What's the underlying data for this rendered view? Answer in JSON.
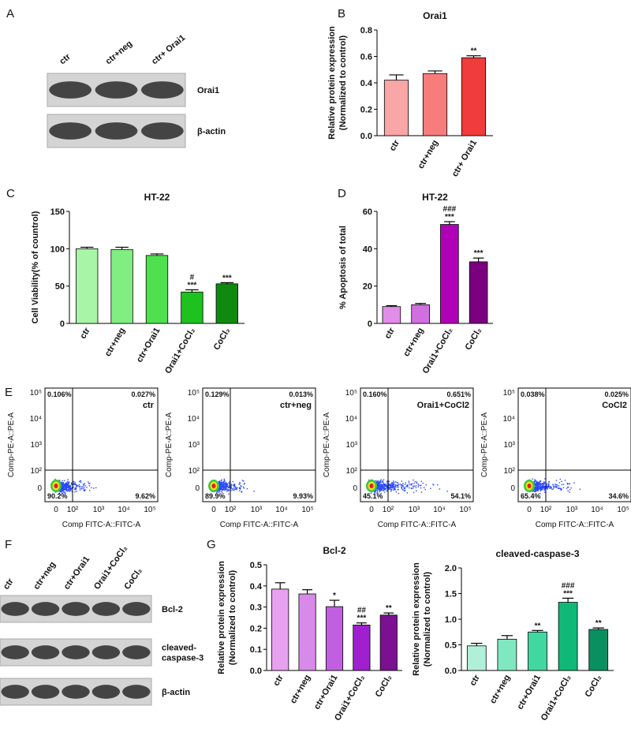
{
  "panels": [
    "A",
    "B",
    "C",
    "D",
    "E",
    "F",
    "G"
  ],
  "blot_a": {
    "lanes": [
      "ctr",
      "ctr+neg",
      "ctr+ Orai1"
    ],
    "rows": [
      [
        "Orai1"
      ],
      [
        "β-actin"
      ]
    ]
  },
  "flow": {
    "ylabel": "Comp-PE-A::PE-A",
    "xlabel": "Comp FITC-A::FITC-A",
    "yticks": [
      "10⁵",
      "10⁴",
      "10³",
      "10²",
      "0"
    ],
    "xticks": [
      "0",
      "10²",
      "10³",
      "10⁴",
      "10⁵"
    ],
    "plots": [
      {
        "tag": "ctr",
        "quadrants": [
          "0.106%",
          "0.027%",
          "90.2%",
          "9.62%"
        ]
      },
      {
        "tag": "ctr+neg",
        "quadrants": [
          "0.129%",
          "0.013%",
          "89.9%",
          "9.93%"
        ]
      },
      {
        "tag": "Orai1+CoCl2",
        "quadrants": [
          "0.160%",
          "0.651%",
          "45.1%",
          "54.1%"
        ]
      },
      {
        "tag": "CoCl2",
        "quadrants": [
          "0.038%",
          "0.025%",
          "65.4%",
          "34.6%"
        ]
      }
    ]
  },
  "blot_f": {
    "lanes": [
      "ctr",
      "ctr+neg",
      "ctr+Orai1",
      "Orai1+CoCl₂",
      "CoCl₂"
    ],
    "rows": [
      [
        "Bcl-2"
      ],
      [
        "cleaved-",
        "caspase-3"
      ],
      [
        "β-actin"
      ]
    ]
  },
  "chart_data": [
    {
      "type": "bar",
      "title": "Orai1",
      "ylabel": [
        "Relative protein expression",
        "(Normalized to control)"
      ],
      "categories": [
        "ctr",
        "ctr+neg",
        "ctr+ Orai1"
      ],
      "values": [
        0.42,
        0.47,
        0.59
      ],
      "errors": [
        0.04,
        0.02,
        0.015
      ],
      "colors": [
        "#f9a6a6",
        "#f77c7c",
        "#f03c3c"
      ],
      "annotations": [
        null,
        null,
        [
          "**"
        ]
      ],
      "ylim": [
        0,
        0.8
      ],
      "yticks": [
        {
          "value": 0,
          "label": "0.0"
        },
        0.2,
        0.4,
        0.6,
        0.8
      ]
    },
    {
      "type": "bar",
      "title": "HT-22",
      "ylabel": [
        "Cell Viability(% of countrol)"
      ],
      "categories": [
        "ctr",
        "ctr+neg",
        "ctr+Orai1",
        "Orai1+CoCl₂",
        "CoCl₂"
      ],
      "values": [
        100,
        99,
        91,
        42,
        53
      ],
      "errors": [
        2,
        3,
        2,
        3,
        1.5
      ],
      "colors": [
        "#a8f5a8",
        "#80ee80",
        "#4ee04e",
        "#1ec21e",
        "#0f8a0f"
      ],
      "annotations": [
        null,
        null,
        null,
        [
          "#",
          "***"
        ],
        [
          "***"
        ]
      ],
      "ylim": [
        0,
        150
      ],
      "yticks": [
        0,
        50,
        100,
        150
      ]
    },
    {
      "type": "bar",
      "title": "HT-22",
      "ylabel": [
        "% Apoptosis of total"
      ],
      "categories": [
        "ctr",
        "ctr+neg",
        "Orai1+CoCl₂",
        "CoCl₂"
      ],
      "values": [
        9,
        10,
        53,
        33
      ],
      "errors": [
        0.5,
        0.7,
        1.5,
        2
      ],
      "colors": [
        "#e08ee8",
        "#d070e0",
        "#b000b8",
        "#7a0080"
      ],
      "annotations": [
        null,
        null,
        [
          "###",
          "***"
        ],
        [
          "***"
        ]
      ],
      "ylim": [
        0,
        60
      ],
      "yticks": [
        0,
        20,
        40,
        60
      ]
    },
    {
      "type": "bar",
      "title": "Bcl-2",
      "ylabel": [
        "Relative protein expression",
        "(Normalized to control)"
      ],
      "categories": [
        "ctr",
        "ctr+neg",
        "ctr+Orai1",
        "Orai1+CoCl₂",
        "CoCl₂"
      ],
      "values": [
        0.385,
        0.362,
        0.302,
        0.215,
        0.262
      ],
      "errors": [
        0.03,
        0.02,
        0.03,
        0.01,
        0.01
      ],
      "colors": [
        "#e8a0f0",
        "#d88ae8",
        "#c060e0",
        "#a020d0",
        "#7b1090"
      ],
      "annotations": [
        null,
        null,
        [
          "*"
        ],
        [
          "##",
          "***"
        ],
        [
          "**"
        ]
      ],
      "ylim": [
        0,
        0.5
      ],
      "yticks": [
        {
          "value": 0,
          "label": "0.0"
        },
        0.1,
        0.2,
        0.3,
        0.4,
        0.5
      ]
    },
    {
      "type": "bar",
      "title": "cleaved-caspase-3",
      "ylabel": [
        "Relative protein expression",
        "(Normalized to control)"
      ],
      "categories": [
        "ctr",
        "ctr+neg",
        "ctr+Orai1",
        "Orai1+CoCl₂",
        "CoCl₂"
      ],
      "values": [
        0.48,
        0.61,
        0.75,
        1.33,
        0.8
      ],
      "errors": [
        0.05,
        0.07,
        0.03,
        0.08,
        0.03
      ],
      "colors": [
        "#b0f0d8",
        "#80e8c0",
        "#40d8a0",
        "#10b878",
        "#0a9060"
      ],
      "annotations": [
        null,
        null,
        [
          "**"
        ],
        [
          "###",
          "***"
        ],
        [
          "**"
        ]
      ],
      "ylim": [
        0,
        2
      ],
      "yticks": [
        {
          "value": 0,
          "label": "0.0"
        },
        0.5,
        {
          "value": 1,
          "label": "1.0"
        },
        1.5,
        {
          "value": 2,
          "label": "2.0"
        }
      ]
    }
  ]
}
